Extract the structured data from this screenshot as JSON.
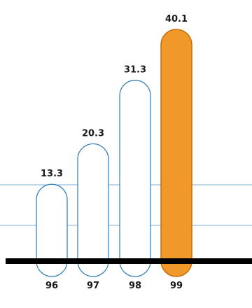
{
  "chart_data": {
    "type": "bar",
    "title": "",
    "xlabel": "",
    "ylabel": "",
    "categories": [
      "96",
      "97",
      "98",
      "99"
    ],
    "values": [
      13.3,
      20.3,
      31.3,
      40.1
    ],
    "value_labels": [
      "13.3",
      "20.3",
      "31.3",
      "40.1"
    ],
    "ylim": [
      0,
      40.1
    ],
    "reference_lines": [
      6.2,
      13.2
    ],
    "grid": false,
    "legend": "none",
    "bar_style": "outlined rounded pills; last bar filled",
    "highlight_index": 3,
    "colors": {
      "outline": "#2e7bb4",
      "highlight_fill": "#f0992a",
      "highlight_stroke": "#c86f0a",
      "reference_line": "#7aaed6",
      "baseline": "#000000",
      "text": "#1a1a1a"
    }
  }
}
